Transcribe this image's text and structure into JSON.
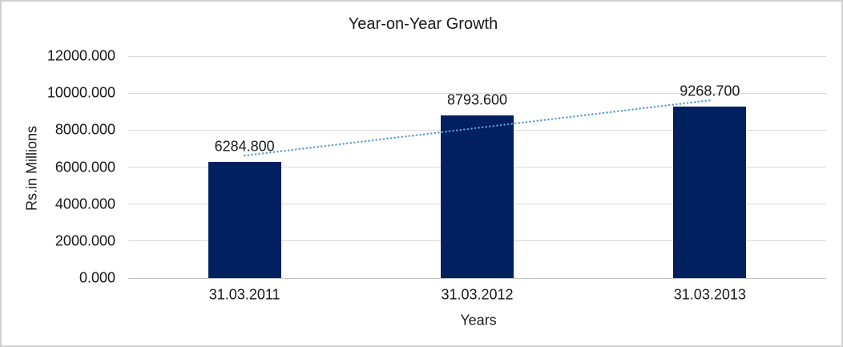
{
  "chart_data": {
    "type": "bar",
    "title": "Year-on-Year Growth",
    "xlabel": "Years",
    "ylabel": "Rs.in Millions",
    "categories": [
      "31.03.2011",
      "31.03.2012",
      "31.03.2013"
    ],
    "values": [
      6284.8,
      8793.6,
      9268.7
    ],
    "data_labels": [
      "6284.800",
      "8793.600",
      "9268.700"
    ],
    "ylim": [
      0,
      12000
    ],
    "ytick_step": 2000,
    "ytick_labels": [
      "0.000",
      "2000.000",
      "4000.000",
      "6000.000",
      "8000.000",
      "10000.000",
      "12000.000"
    ],
    "grid": true,
    "legend": "none",
    "trendline": {
      "type": "linear",
      "style": "dotted",
      "series": "values"
    },
    "colors": {
      "bar": "#002060",
      "trendline": "#5b9bd5",
      "gridline": "#d9d9d9",
      "zero_line": "#c6c6c6",
      "text": "#1a1a1a",
      "frame_border": "#d0d0d0",
      "background": "#ffffff"
    }
  }
}
